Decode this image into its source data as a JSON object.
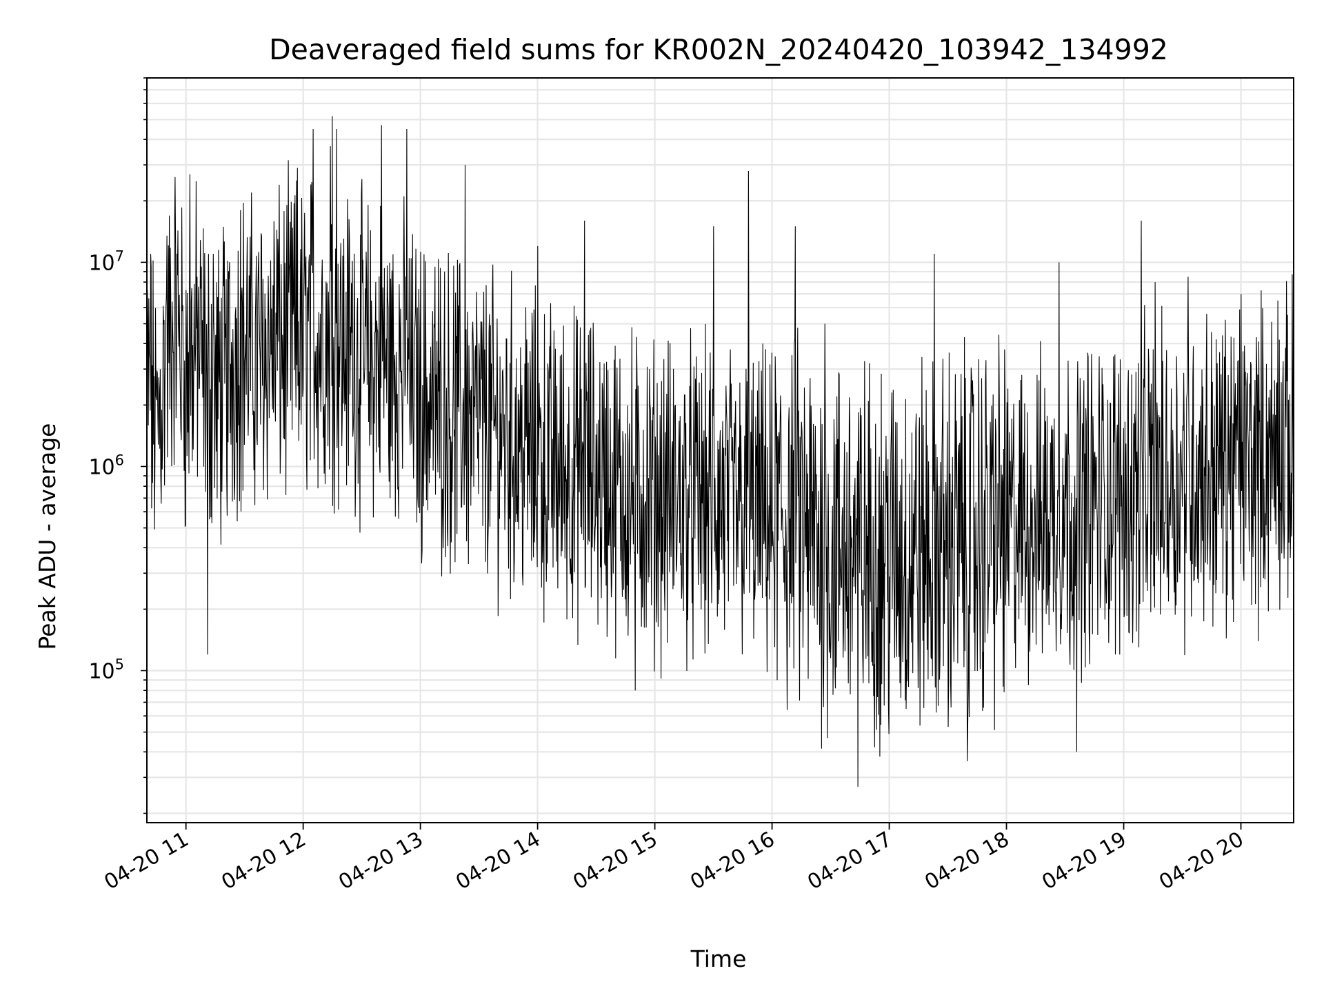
{
  "chart_data": {
    "type": "line",
    "title": "Deaveraged field sums for KR002N_20240420_103942_134992",
    "xlabel": "Time",
    "ylabel": "Peak ADU - average",
    "y_scale": "log",
    "ylim": [
      18000,
      80000000
    ],
    "xlim": [
      "04-20 10:40",
      "04-20 20:27"
    ],
    "grid": true,
    "line_color": "#000000",
    "grid_color": "#e6e6e6",
    "x_ticks": [
      "04-20 11",
      "04-20 12",
      "04-20 13",
      "04-20 14",
      "04-20 15",
      "04-20 16",
      "04-20 17",
      "04-20 18",
      "04-20 19",
      "04-20 20"
    ],
    "y_ticks": [
      {
        "value": 100000,
        "base": "10",
        "exp": "5"
      },
      {
        "value": 1000000,
        "base": "10",
        "exp": "6"
      },
      {
        "value": 10000000,
        "base": "10",
        "exp": "7"
      }
    ],
    "series": [
      {
        "points": [
          [
            "04-20 10:40",
            2600000
          ],
          [
            "04-20 10:45",
            1500000
          ],
          [
            "04-20 10:50",
            3500000
          ],
          [
            "04-20 10:55",
            6000000
          ],
          [
            "04-20 11:00",
            2500000
          ],
          [
            "04-20 11:05",
            4000000
          ],
          [
            "04-20 11:10",
            3000000
          ],
          [
            "04-20 11:15",
            2200000
          ],
          [
            "04-20 11:20",
            2600000
          ],
          [
            "04-20 11:25",
            3500000
          ],
          [
            "04-20 11:30",
            4000000
          ],
          [
            "04-20 11:35",
            3300000
          ],
          [
            "04-20 11:40",
            3800000
          ],
          [
            "04-20 11:45",
            4200000
          ],
          [
            "04-20 11:50",
            3700000
          ],
          [
            "04-20 11:55",
            4500000
          ],
          [
            "04-20 12:00",
            4000000
          ],
          [
            "04-20 12:05",
            4800000
          ],
          [
            "04-20 12:10",
            4200000
          ],
          [
            "04-20 12:15",
            4500000
          ],
          [
            "04-20 12:20",
            3800000
          ],
          [
            "04-20 12:25",
            4000000
          ],
          [
            "04-20 12:30",
            3500000
          ],
          [
            "04-20 12:35",
            3200000
          ],
          [
            "04-20 12:40",
            3600000
          ],
          [
            "04-20 12:45",
            3000000
          ],
          [
            "04-20 12:50",
            3200000
          ],
          [
            "04-20 12:55",
            2500000
          ],
          [
            "04-20 13:00",
            2200000
          ],
          [
            "04-20 13:10",
            2000000
          ],
          [
            "04-20 13:20",
            1800000
          ],
          [
            "04-20 13:30",
            1600000
          ],
          [
            "04-20 13:40",
            1500000
          ],
          [
            "04-20 13:50",
            1300000
          ],
          [
            "04-20 14:00",
            1100000
          ],
          [
            "04-20 14:10",
            1000000
          ],
          [
            "04-20 14:20",
            950000
          ],
          [
            "04-20 14:30",
            900000
          ],
          [
            "04-20 14:40",
            800000
          ],
          [
            "04-20 14:50",
            750000
          ],
          [
            "04-20 15:00",
            700000
          ],
          [
            "04-20 15:10",
            700000
          ],
          [
            "04-20 15:20",
            680000
          ],
          [
            "04-20 15:30",
            650000
          ],
          [
            "04-20 15:40",
            620000
          ],
          [
            "04-20 15:50",
            600000
          ],
          [
            "04-20 16:00",
            550000
          ],
          [
            "04-20 16:10",
            500000
          ],
          [
            "04-20 16:20",
            450000
          ],
          [
            "04-20 16:30",
            420000
          ],
          [
            "04-20 16:40",
            400000
          ],
          [
            "04-20 16:50",
            380000
          ],
          [
            "04-20 17:00",
            370000
          ],
          [
            "04-20 17:10",
            380000
          ],
          [
            "04-20 17:20",
            400000
          ],
          [
            "04-20 17:30",
            420000
          ],
          [
            "04-20 17:40",
            450000
          ],
          [
            "04-20 17:50",
            480000
          ],
          [
            "04-20 18:00",
            500000
          ],
          [
            "04-20 18:10",
            550000
          ],
          [
            "04-20 18:20",
            580000
          ],
          [
            "04-20 18:30",
            620000
          ],
          [
            "04-20 18:40",
            650000
          ],
          [
            "04-20 18:50",
            700000
          ],
          [
            "04-20 19:00",
            750000
          ],
          [
            "04-20 19:10",
            800000
          ],
          [
            "04-20 19:20",
            850000
          ],
          [
            "04-20 19:30",
            900000
          ],
          [
            "04-20 19:40",
            950000
          ],
          [
            "04-20 19:50",
            1000000
          ],
          [
            "04-20 20:00",
            1050000
          ],
          [
            "04-20 20:10",
            1100000
          ],
          [
            "04-20 20:20",
            1150000
          ],
          [
            "04-20 20:27",
            1200000
          ]
        ],
        "peaks": [
          [
            "04-20 10:42",
            11000000
          ],
          [
            "04-20 10:50",
            7000000
          ],
          [
            "04-20 11:02",
            27000000
          ],
          [
            "04-20 11:11",
            120000
          ],
          [
            "04-20 11:14",
            11000000
          ],
          [
            "04-20 11:28",
            18000000
          ],
          [
            "04-20 11:47",
            13000000
          ],
          [
            "04-20 11:57",
            29000000
          ],
          [
            "04-20 12:05",
            45000000
          ],
          [
            "04-20 12:14",
            37000000
          ],
          [
            "04-20 12:15",
            52000000
          ],
          [
            "04-20 12:17",
            45000000
          ],
          [
            "04-20 12:40",
            47000000
          ],
          [
            "04-20 12:53",
            45000000
          ],
          [
            "04-20 13:23",
            30000000
          ],
          [
            "04-20 14:00",
            12000000
          ],
          [
            "04-20 14:24",
            16000000
          ],
          [
            "04-20 14:50",
            80000
          ],
          [
            "04-20 15:30",
            15000000
          ],
          [
            "04-20 15:48",
            28000000
          ],
          [
            "04-20 16:12",
            15000000
          ],
          [
            "04-20 16:27",
            5000000
          ],
          [
            "04-20 16:44",
            27000
          ],
          [
            "04-20 17:23",
            11000000
          ],
          [
            "04-20 17:40",
            36000
          ],
          [
            "04-20 18:27",
            10000000
          ],
          [
            "04-20 18:36",
            40000
          ],
          [
            "04-20 19:09",
            16000000
          ],
          [
            "04-20 19:16",
            8000000
          ],
          [
            "04-20 19:33",
            8500000
          ],
          [
            "04-20 20:00",
            7000000
          ],
          [
            "04-20 20:19",
            6500000
          ]
        ]
      }
    ]
  }
}
